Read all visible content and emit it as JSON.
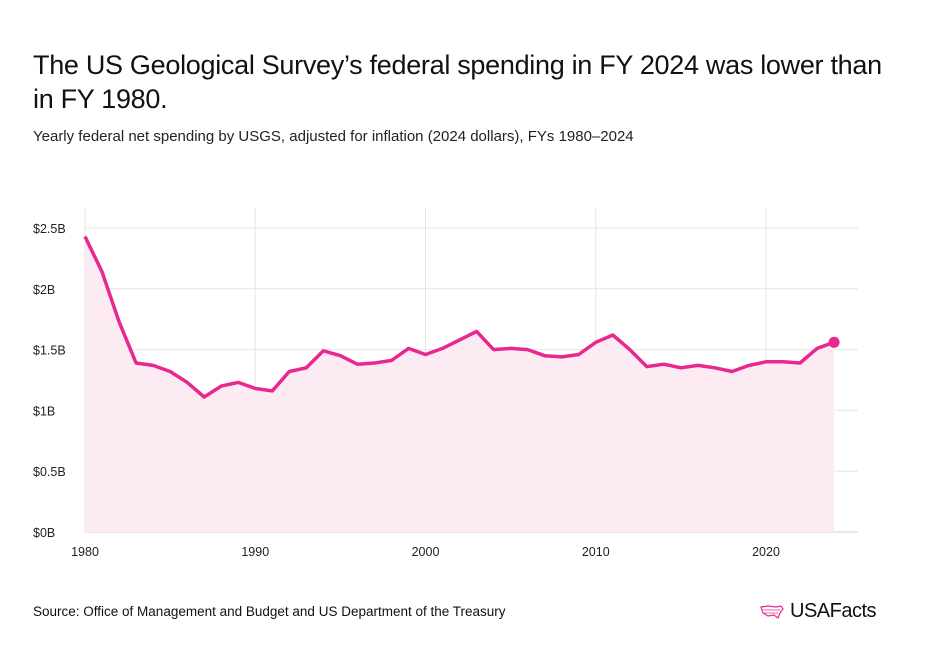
{
  "title": "The US Geological Survey’s federal spending in FY 2024 was lower than in FY 1980.",
  "subtitle": "Yearly federal net spending by USGS, adjusted for inflation (2024 dollars), FYs 1980–2024",
  "source": "Source: Office of Management and Budget and US Department of the Treasury",
  "logo": "USAFacts",
  "colors": {
    "line": "#e8288e",
    "fill": "#fdebf4",
    "grid": "#e6e6e6"
  },
  "chart_data": {
    "type": "area",
    "title": "The US Geological Survey’s federal spending in FY 2024 was lower than in FY 1980.",
    "xlabel": "",
    "ylabel": "",
    "xlim": [
      1980,
      2025.5
    ],
    "ylim": [
      0,
      2.5
    ],
    "x_ticks": [
      1980,
      1990,
      2000,
      2010,
      2020
    ],
    "x_tick_labels": [
      "1980",
      "1990",
      "2000",
      "2010",
      "2020"
    ],
    "y_ticks": [
      0,
      0.5,
      1,
      1.5,
      2,
      2.5
    ],
    "y_tick_labels": [
      "$0B",
      "$0.5B",
      "$1B",
      "$1.5B",
      "$2B",
      "$2.5B"
    ],
    "grid": true,
    "x": [
      1980,
      1981,
      1982,
      1983,
      1984,
      1985,
      1986,
      1987,
      1988,
      1989,
      1990,
      1991,
      1992,
      1993,
      1994,
      1995,
      1996,
      1997,
      1998,
      1999,
      2000,
      2001,
      2002,
      2003,
      2004,
      2005,
      2006,
      2007,
      2008,
      2009,
      2010,
      2011,
      2012,
      2013,
      2014,
      2015,
      2016,
      2017,
      2018,
      2019,
      2020,
      2021,
      2022,
      2023,
      2024
    ],
    "values": [
      2.43,
      2.14,
      1.73,
      1.39,
      1.37,
      1.32,
      1.23,
      1.11,
      1.2,
      1.23,
      1.18,
      1.16,
      1.32,
      1.35,
      1.49,
      1.45,
      1.38,
      1.39,
      1.41,
      1.51,
      1.46,
      1.51,
      1.58,
      1.65,
      1.5,
      1.51,
      1.5,
      1.45,
      1.44,
      1.46,
      1.56,
      1.62,
      1.5,
      1.36,
      1.38,
      1.35,
      1.37,
      1.35,
      1.32,
      1.37,
      1.4,
      1.4,
      1.39,
      1.51,
      1.56
    ]
  }
}
